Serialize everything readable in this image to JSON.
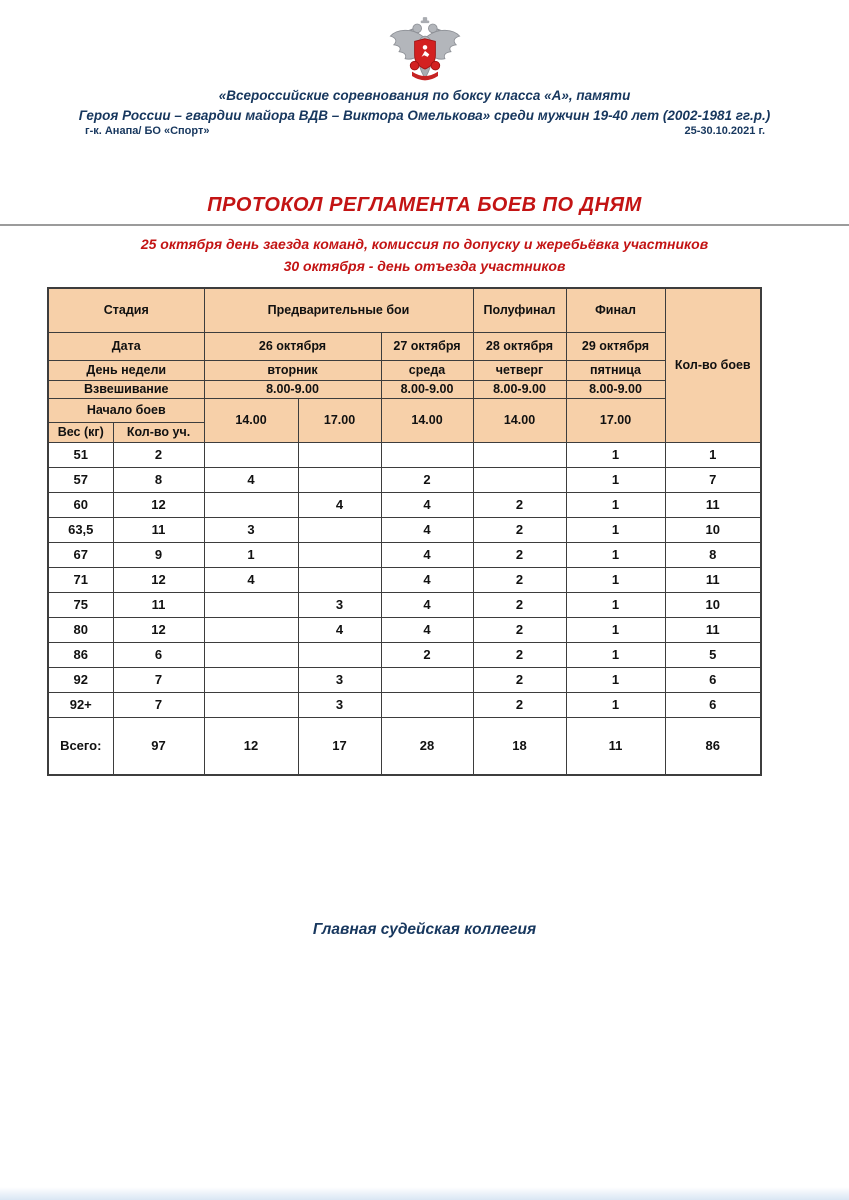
{
  "colors": {
    "cell_fill": "#f7d0a9",
    "accent_red": "#c31414",
    "accent_blue": "#17375e",
    "border": "#3d3d3d"
  },
  "page": {
    "emblem_icon": "double-headed-eagle-boxing-federation-emblem",
    "header": {
      "line1": "«Всероссийские соревнования по боксу класса «А», памяти",
      "line2": "Героя России – гвардии майора ВДВ – Виктора Омелькова» среди мужчин 19-40 лет (2002-1981 гг.р.)",
      "venue": "г-к. Анапа/ БО «Спорт»",
      "dates": "25-30.10.2021 г."
    },
    "title": "ПРОТОКОЛ РЕГЛАМЕНТА БОЕВ ПО ДНЯМ",
    "subtitle1": "25 октября день заезда команд, комиссия по допуску и жеребьёвка участников",
    "subtitle2": "30 октября - день отъезда участников",
    "footer": "Главная судейская коллегия"
  },
  "table": {
    "header": {
      "stage_label": "Стадия",
      "prelim_label": "Предварительные бои",
      "semifinal_label": "Полуфинал",
      "final_label": "Финал",
      "bouts_label": "Кол-во боев",
      "date_label": "Дата",
      "weekday_label": "День недели",
      "weighin_label": "Взвешивание",
      "start_label": "Начало боев",
      "weight_label": "Вес (кг)",
      "participants_label": "Кол-во уч.",
      "dates": [
        "26 октября",
        "27 октября",
        "28 октября",
        "29 октября"
      ],
      "weekdays": [
        "вторник",
        "среда",
        "четверг",
        "пятница"
      ],
      "weighins": [
        "8.00-9.00",
        "8.00-9.00",
        "8.00-9.00",
        "8.00-9.00"
      ],
      "start_times": [
        "14.00",
        "17.00",
        "14.00",
        "14.00",
        "17.00"
      ]
    },
    "rows": [
      {
        "weight": "51",
        "values": [
          "2",
          "",
          "",
          "",
          "",
          "1",
          "1"
        ]
      },
      {
        "weight": "57",
        "values": [
          "8",
          "4",
          "",
          "2",
          "",
          "1",
          "7"
        ]
      },
      {
        "weight": "60",
        "values": [
          "12",
          "",
          "4",
          "4",
          "2",
          "1",
          "11"
        ]
      },
      {
        "weight": "63,5",
        "values": [
          "11",
          "3",
          "",
          "4",
          "2",
          "1",
          "10"
        ]
      },
      {
        "weight": "67",
        "values": [
          "9",
          "1",
          "",
          "4",
          "2",
          "1",
          "8"
        ]
      },
      {
        "weight": "71",
        "values": [
          "12",
          "4",
          "",
          "4",
          "2",
          "1",
          "11"
        ]
      },
      {
        "weight": "75",
        "values": [
          "11",
          "",
          "3",
          "4",
          "2",
          "1",
          "10"
        ]
      },
      {
        "weight": "80",
        "values": [
          "12",
          "",
          "4",
          "4",
          "2",
          "1",
          "11"
        ]
      },
      {
        "weight": "86",
        "values": [
          "6",
          "",
          "",
          "2",
          "2",
          "1",
          "5"
        ]
      },
      {
        "weight": "92",
        "values": [
          "7",
          "",
          "3",
          "",
          "2",
          "1",
          "6"
        ]
      },
      {
        "weight": "92+",
        "values": [
          "7",
          "",
          "3",
          "",
          "2",
          "1",
          "6"
        ]
      }
    ],
    "total": {
      "label": "Всего:",
      "values": [
        "97",
        "12",
        "17",
        "28",
        "18",
        "11",
        "86"
      ]
    }
  }
}
